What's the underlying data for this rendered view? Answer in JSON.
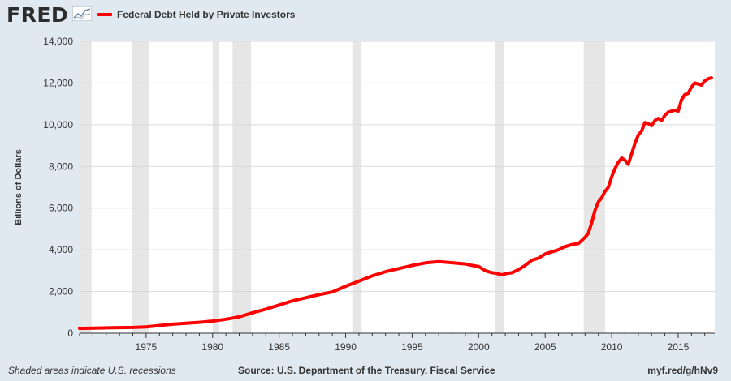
{
  "header": {
    "logo_text": "FRED",
    "logo_icon": "chart-line-icon",
    "legend_label": "Federal Debt Held by Private Investors",
    "legend_color": "#ff0000"
  },
  "footer": {
    "recession_note": "Shaded areas indicate U.S. recessions",
    "source": "Source: U.S. Department of the Treasury. Fiscal Service",
    "short_link": "myf.red/g/hNv9"
  },
  "chart_data": {
    "type": "line",
    "ylabel": "Billions of Dollars",
    "xlim": [
      1970.0,
      2017.75
    ],
    "ylim": [
      0,
      14000
    ],
    "y_ticks": [
      0,
      2000,
      4000,
      6000,
      8000,
      10000,
      12000,
      14000
    ],
    "y_tick_labels": [
      "0",
      "2,000",
      "4,000",
      "6,000",
      "8,000",
      "10,000",
      "12,000",
      "14,000"
    ],
    "x_ticks": [
      1975,
      1980,
      1985,
      1990,
      1995,
      2000,
      2005,
      2010,
      2015
    ],
    "x_tick_labels": [
      "1975",
      "1980",
      "1985",
      "1990",
      "1995",
      "2000",
      "2005",
      "2010",
      "2015"
    ],
    "grid": "horizontal",
    "recessions": [
      [
        1970.0,
        1970.9
      ],
      [
        1973.9,
        1975.2
      ],
      [
        1980.0,
        1980.5
      ],
      [
        1981.5,
        1982.9
      ],
      [
        1990.5,
        1991.2
      ],
      [
        2001.2,
        2001.9
      ],
      [
        2007.9,
        2009.5
      ]
    ],
    "recession_color": "#e6e6e6",
    "series": [
      {
        "name": "Federal Debt Held by Private Investors",
        "color": "#ff0000",
        "x": [
          1970.0,
          1971.0,
          1972.0,
          1973.0,
          1974.0,
          1975.0,
          1976.0,
          1977.0,
          1978.0,
          1979.0,
          1980.0,
          1981.0,
          1982.0,
          1983.0,
          1984.0,
          1985.0,
          1986.0,
          1987.0,
          1988.0,
          1989.0,
          1990.0,
          1991.0,
          1992.0,
          1993.0,
          1994.0,
          1995.0,
          1996.0,
          1997.0,
          1998.0,
          1999.0,
          1999.5,
          2000.0,
          2000.5,
          2001.0,
          2001.25,
          2001.75,
          2002.0,
          2002.5,
          2003.0,
          2003.5,
          2004.0,
          2004.5,
          2005.0,
          2005.5,
          2006.0,
          2006.5,
          2007.0,
          2007.5,
          2008.0,
          2008.25,
          2008.5,
          2008.75,
          2009.0,
          2009.25,
          2009.5,
          2009.75,
          2010.0,
          2010.25,
          2010.5,
          2010.75,
          2011.0,
          2011.25,
          2011.5,
          2011.75,
          2012.0,
          2012.25,
          2012.5,
          2012.75,
          2013.0,
          2013.25,
          2013.5,
          2013.75,
          2014.0,
          2014.25,
          2014.5,
          2014.75,
          2015.0,
          2015.25,
          2015.5,
          2015.75,
          2016.0,
          2016.25,
          2016.5,
          2016.75,
          2017.0,
          2017.25,
          2017.5
        ],
        "values": [
          230,
          240,
          255,
          270,
          275,
          300,
          370,
          430,
          480,
          520,
          580,
          670,
          780,
          980,
          1150,
          1350,
          1550,
          1700,
          1850,
          1980,
          2250,
          2500,
          2750,
          2950,
          3100,
          3250,
          3370,
          3430,
          3380,
          3320,
          3250,
          3200,
          3000,
          2900,
          2880,
          2800,
          2850,
          2900,
          3050,
          3250,
          3500,
          3600,
          3800,
          3900,
          4000,
          4150,
          4250,
          4300,
          4600,
          4800,
          5300,
          5900,
          6300,
          6500,
          6800,
          7000,
          7500,
          7900,
          8200,
          8400,
          8300,
          8100,
          8600,
          9100,
          9500,
          9700,
          10100,
          10050,
          9950,
          10200,
          10300,
          10200,
          10450,
          10600,
          10650,
          10700,
          10650,
          11200,
          11450,
          11500,
          11800,
          12000,
          11950,
          11900,
          12100,
          12200,
          12250
        ]
      }
    ]
  }
}
